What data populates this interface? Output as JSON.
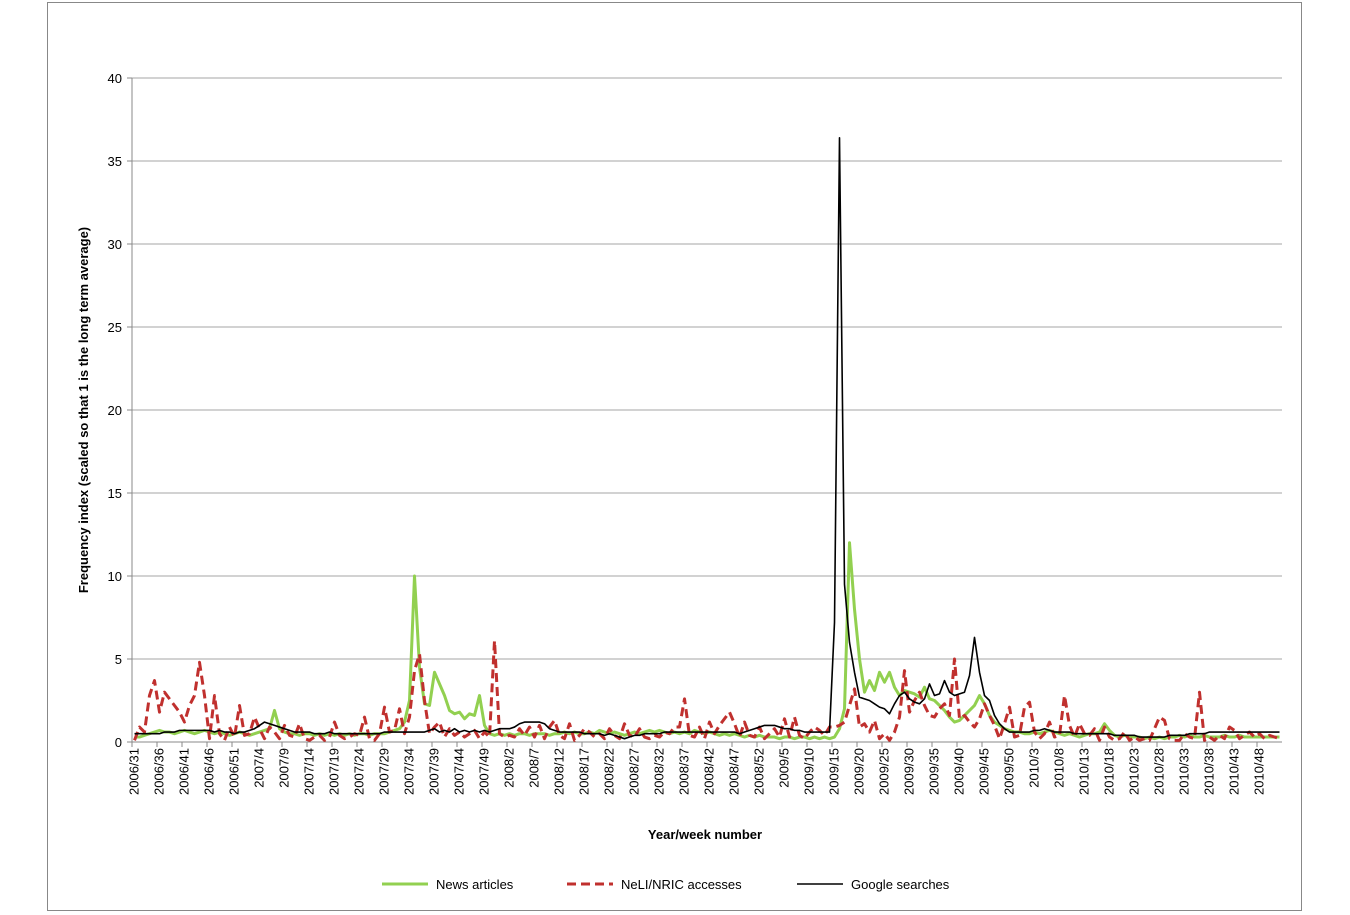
{
  "chart_data": {
    "type": "line",
    "y_label": "Frequency index (scaled so that 1 is the long term average)",
    "x_label": "Year/week number",
    "categories": [
      "2006/31",
      null,
      null,
      null,
      null,
      "2006/36",
      null,
      null,
      null,
      null,
      "2006/41",
      null,
      null,
      null,
      null,
      "2006/46",
      null,
      null,
      null,
      null,
      "2006/51",
      null,
      null,
      null,
      null,
      "2007/4",
      null,
      null,
      null,
      null,
      "2007/9",
      null,
      null,
      null,
      null,
      "2007/14",
      null,
      null,
      null,
      null,
      "2007/19",
      null,
      null,
      null,
      null,
      "2007/24",
      null,
      null,
      null,
      null,
      "2007/29",
      null,
      null,
      null,
      null,
      "2007/34",
      null,
      null,
      null,
      null,
      "2007/39",
      null,
      null,
      null,
      null,
      "2007/44",
      null,
      null,
      null,
      null,
      "2007/49",
      null,
      null,
      null,
      null,
      "2008/2",
      null,
      null,
      null,
      null,
      "2008/7",
      null,
      null,
      null,
      null,
      "2008/12",
      null,
      null,
      null,
      null,
      "2008/17",
      null,
      null,
      null,
      null,
      "2008/22",
      null,
      null,
      null,
      null,
      "2008/27",
      null,
      null,
      null,
      null,
      "2008/32",
      null,
      null,
      null,
      null,
      "2008/37",
      null,
      null,
      null,
      null,
      "2008/42",
      null,
      null,
      null,
      null,
      "2008/47",
      null,
      null,
      null,
      null,
      "2008/52",
      null,
      null,
      null,
      null,
      "2009/5",
      null,
      null,
      null,
      null,
      "2009/10",
      null,
      null,
      null,
      null,
      "2009/15",
      null,
      null,
      null,
      null,
      "2009/20",
      null,
      null,
      null,
      null,
      "2009/25",
      null,
      null,
      null,
      null,
      "2009/30",
      null,
      null,
      null,
      null,
      "2009/35",
      null,
      null,
      null,
      null,
      "2009/40",
      null,
      null,
      null,
      null,
      "2009/45",
      null,
      null,
      null,
      null,
      "2009/50",
      null,
      null,
      null,
      null,
      "2010/3",
      null,
      null,
      null,
      null,
      "2010/8",
      null,
      null,
      null,
      null,
      "2010/13",
      null,
      null,
      null,
      null,
      "2010/18",
      null,
      null,
      null,
      null,
      "2010/23",
      null,
      null,
      null,
      null,
      "2010/28",
      null,
      null,
      null,
      null,
      "2010/33",
      null,
      null,
      null,
      null,
      "2010/38",
      null,
      null,
      null,
      null,
      "2010/43",
      null,
      null,
      null,
      null,
      "2010/48",
      null,
      null,
      null,
      null
    ],
    "series": [
      {
        "name": "News articles",
        "color": "#92d050",
        "dash": false,
        "width": 3,
        "values": [
          0.3,
          0.3,
          0.4,
          0.5,
          0.6,
          0.7,
          0.6,
          0.6,
          0.5,
          0.6,
          0.7,
          0.6,
          0.5,
          0.6,
          0.7,
          0.6,
          0.5,
          0.6,
          0.5,
          0.4,
          0.5,
          0.6,
          0.5,
          0.4,
          0.5,
          0.6,
          0.7,
          0.8,
          1.9,
          0.8,
          0.6,
          0.5,
          0.5,
          0.4,
          0.5,
          0.5,
          0.4,
          0.5,
          0.4,
          0.5,
          0.4,
          0.5,
          0.4,
          0.5,
          0.4,
          0.5,
          0.5,
          0.4,
          0.5,
          0.5,
          0.5,
          0.6,
          0.7,
          0.8,
          1.2,
          2.5,
          10,
          4.5,
          2.3,
          2.2,
          4.2,
          3.5,
          2.8,
          1.9,
          1.7,
          1.8,
          1.4,
          1.7,
          1.6,
          2.8,
          1.0,
          0.5,
          0.4,
          0.5,
          0.4,
          0.5,
          0.4,
          0.5,
          0.5,
          0.4,
          0.5,
          0.5,
          0.5,
          0.4,
          0.5,
          0.5,
          0.6,
          0.5,
          0.6,
          0.5,
          0.5,
          0.6,
          0.5,
          0.7,
          0.6,
          0.5,
          0.6,
          0.5,
          0.4,
          0.5,
          0.6,
          0.5,
          0.6,
          0.7,
          0.6,
          0.7,
          0.6,
          0.5,
          0.6,
          0.5,
          0.6,
          0.5,
          0.7,
          0.6,
          0.5,
          0.6,
          0.5,
          0.4,
          0.5,
          0.4,
          0.5,
          0.4,
          0.3,
          0.4,
          0.3,
          0.4,
          0.3,
          0.3,
          0.3,
          0.2,
          0.3,
          0.3,
          0.2,
          0.3,
          0.3,
          0.2,
          0.3,
          0.2,
          0.3,
          0.2,
          0.3,
          0.8,
          2.0,
          12,
          8,
          5,
          3,
          3.7,
          3.1,
          4.2,
          3.6,
          4.2,
          3.3,
          2.8,
          3.1,
          3.0,
          2.9,
          2.7,
          3.3,
          2.6,
          2.5,
          2.2,
          1.9,
          1.5,
          1.2,
          1.3,
          1.6,
          1.9,
          2.2,
          2.8,
          2.3,
          1.6,
          1.2,
          1.0,
          0.8,
          0.7,
          0.6,
          0.6,
          0.5,
          0.5,
          0.6,
          0.5,
          0.6,
          0.7,
          0.6,
          0.5,
          0.4,
          0.5,
          0.4,
          0.3,
          0.4,
          0.5,
          0.5,
          0.6,
          1.1,
          0.7,
          0.4,
          0.3,
          0.4,
          0.3,
          0.3,
          0.3,
          0.2,
          0.3,
          0.2,
          0.3,
          0.2,
          0.3,
          0.3,
          0.4,
          0.3,
          0.4,
          0.3,
          0.3,
          0.4,
          0.3,
          0.3,
          0.3,
          0.4,
          0.3,
          0.3,
          0.4,
          0.3,
          0.3,
          0.3,
          0.3,
          0.3,
          0.3,
          0.3,
          0.3
        ]
      },
      {
        "name": "NeLI/NRIC accesses",
        "color": "#c0302e",
        "dash": true,
        "width": 3,
        "values": [
          0.1,
          0.9,
          0.6,
          2.8,
          3.7,
          1.8,
          3.0,
          2.6,
          2.2,
          1.8,
          1.2,
          2.2,
          2.8,
          4.8,
          2.8,
          0.2,
          2.8,
          0.5,
          0.1,
          0.9,
          0.3,
          2.2,
          0.4,
          0.5,
          1.5,
          0.8,
          0.2,
          0.9,
          0.6,
          0.2,
          1.0,
          0.4,
          0.3,
          1.1,
          0.2,
          0.1,
          0.3,
          0.4,
          0.1,
          0.3,
          1.2,
          0.4,
          0.2,
          0.3,
          0.5,
          0.4,
          1.5,
          0.2,
          0.1,
          0.5,
          2.1,
          0.6,
          0.7,
          2.0,
          0.5,
          1.5,
          4.3,
          5.3,
          2.5,
          0.5,
          0.9,
          1.2,
          0.3,
          0.8,
          0.4,
          0.6,
          0.3,
          0.5,
          0.7,
          0.2,
          0.6,
          0.3,
          6.1,
          0.5,
          0.3,
          0.4,
          0.3,
          0.8,
          0.4,
          0.9,
          0.3,
          1.0,
          0.2,
          0.9,
          1.3,
          0.4,
          0.2,
          1.1,
          0.1,
          0.4,
          0.8,
          0.6,
          0.3,
          0.5,
          0.2,
          0.8,
          0.4,
          0.2,
          1.1,
          0.4,
          0.3,
          0.8,
          0.3,
          0.2,
          0.4,
          0.3,
          0.6,
          0.5,
          0.9,
          0.9,
          2.6,
          0.4,
          0.3,
          0.9,
          0.2,
          1.2,
          0.5,
          1.0,
          1.4,
          1.8,
          1.1,
          0.3,
          1.2,
          0.4,
          0.3,
          0.9,
          0.2,
          0.5,
          0.8,
          0.3,
          1.4,
          0.3,
          1.5,
          0.4,
          0.2,
          0.6,
          0.9,
          0.7,
          0.4,
          0.9,
          0.9,
          1.0,
          1.2,
          2.2,
          3.2,
          0.9,
          1.1,
          0.6,
          1.3,
          0.2,
          0.5,
          0.1,
          0.6,
          1.5,
          4.3,
          1.8,
          2.5,
          3.0,
          2.2,
          1.6,
          1.5,
          2.0,
          2.3,
          1.6,
          5.0,
          1.4,
          1.6,
          1.2,
          0.9,
          1.4,
          2.3,
          1.6,
          1.0,
          0.2,
          1.1,
          2.1,
          0.3,
          0.4,
          2.1,
          2.4,
          0.6,
          0.2,
          0.5,
          1.2,
          0.3,
          0.4,
          2.8,
          1.0,
          0.3,
          1.1,
          0.5,
          0.4,
          0.8,
          0.1,
          0.9,
          0.3,
          0.1,
          0.2,
          0.6,
          0.1,
          0.3,
          0.1,
          0.2,
          0.1,
          0.8,
          1.5,
          1.3,
          0.2,
          0.1,
          0.1,
          0.5,
          0.3,
          0.2,
          3.0,
          0.1,
          0.3,
          0.1,
          0.4,
          0.2,
          0.9,
          0.7,
          0.2,
          0.4,
          0.6,
          0.3,
          0.5,
          0.2,
          0.4,
          0.3,
          0.2
        ]
      },
      {
        "name": "Google searches",
        "color": "#000000",
        "dash": false,
        "width": 1.6,
        "values": [
          0.5,
          0.5,
          0.5,
          0.5,
          0.5,
          0.5,
          0.6,
          0.6,
          0.6,
          0.7,
          0.7,
          0.7,
          0.7,
          0.7,
          0.7,
          0.7,
          0.6,
          0.7,
          0.6,
          0.6,
          0.5,
          0.6,
          0.6,
          0.7,
          0.8,
          1.0,
          1.2,
          1.1,
          1.0,
          0.9,
          0.8,
          0.7,
          0.6,
          0.6,
          0.6,
          0.6,
          0.5,
          0.5,
          0.5,
          0.6,
          0.5,
          0.5,
          0.5,
          0.5,
          0.5,
          0.5,
          0.5,
          0.5,
          0.5,
          0.5,
          0.6,
          0.6,
          0.6,
          0.6,
          0.6,
          0.6,
          0.6,
          0.6,
          0.6,
          0.7,
          0.8,
          0.6,
          0.7,
          0.6,
          0.8,
          0.6,
          0.7,
          0.6,
          0.7,
          0.6,
          0.7,
          0.6,
          0.7,
          0.8,
          0.8,
          0.8,
          0.9,
          1.1,
          1.2,
          1.2,
          1.2,
          1.2,
          1.1,
          0.8,
          0.7,
          0.6,
          0.6,
          0.6,
          0.6,
          0.6,
          0.5,
          0.5,
          0.5,
          0.5,
          0.4,
          0.5,
          0.4,
          0.3,
          0.2,
          0.3,
          0.4,
          0.4,
          0.5,
          0.5,
          0.5,
          0.5,
          0.6,
          0.6,
          0.6,
          0.6,
          0.6,
          0.6,
          0.6,
          0.6,
          0.6,
          0.6,
          0.6,
          0.6,
          0.6,
          0.6,
          0.6,
          0.5,
          0.6,
          0.7,
          0.8,
          0.9,
          1.0,
          1.0,
          1.0,
          0.9,
          0.8,
          0.8,
          0.7,
          0.7,
          0.6,
          0.6,
          0.6,
          0.6,
          0.6,
          0.6,
          7.2,
          36.4,
          9.5,
          6.0,
          4.2,
          2.7,
          2.6,
          2.5,
          2.3,
          2.1,
          2.0,
          1.7,
          2.3,
          2.8,
          3.0,
          2.6,
          2.4,
          2.3,
          2.6,
          3.5,
          2.8,
          2.9,
          3.7,
          3.0,
          2.8,
          2.9,
          3.0,
          4.0,
          6.3,
          4.2,
          2.8,
          2.5,
          1.6,
          1.1,
          0.8,
          0.6,
          0.6,
          0.6,
          0.6,
          0.6,
          0.7,
          0.7,
          0.8,
          0.7,
          0.6,
          0.6,
          0.6,
          0.6,
          0.5,
          0.5,
          0.5,
          0.5,
          0.5,
          0.5,
          0.5,
          0.5,
          0.4,
          0.4,
          0.4,
          0.4,
          0.4,
          0.3,
          0.3,
          0.3,
          0.3,
          0.3,
          0.3,
          0.4,
          0.4,
          0.4,
          0.4,
          0.5,
          0.5,
          0.5,
          0.5,
          0.6,
          0.6,
          0.6,
          0.6,
          0.6,
          0.6,
          0.6,
          0.6,
          0.6,
          0.6,
          0.6,
          0.6,
          0.6,
          0.6,
          0.6
        ]
      }
    ],
    "ylim": [
      0,
      40
    ],
    "yticks": [
      0,
      5,
      10,
      15,
      20,
      25,
      30,
      35,
      40
    ],
    "grid": true,
    "legend": "bottom"
  }
}
